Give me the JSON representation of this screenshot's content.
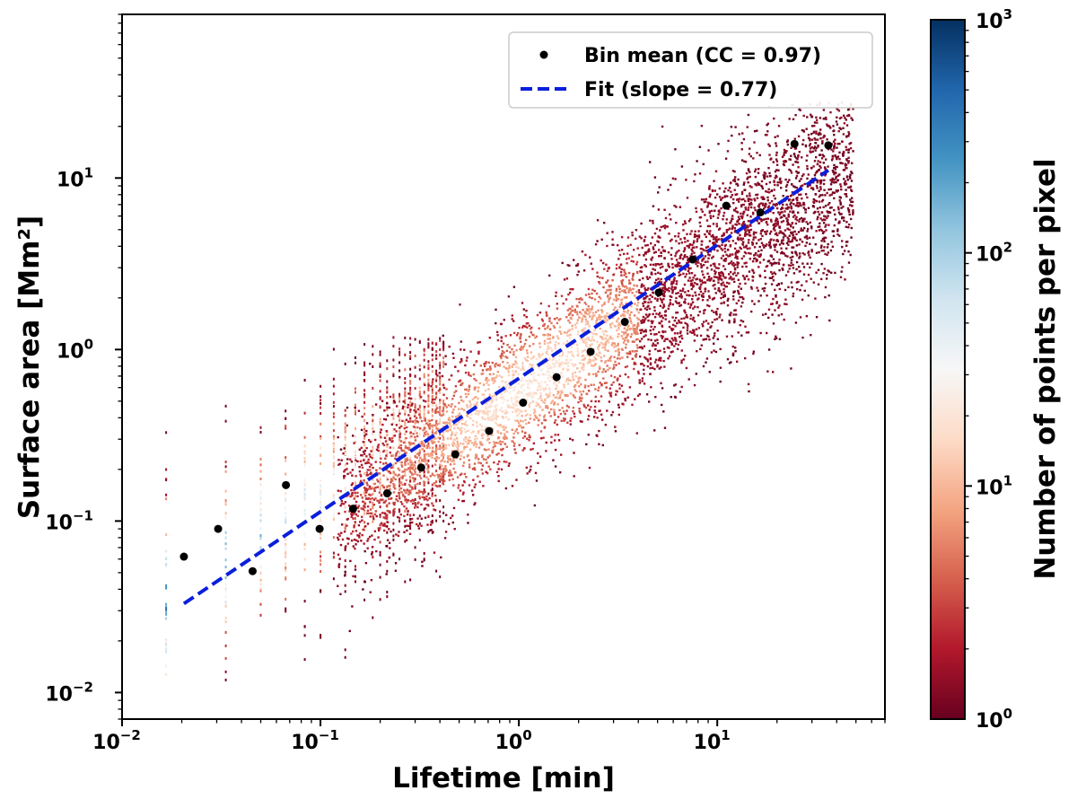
{
  "chart_data": {
    "type": "scatter",
    "xscale": "log",
    "yscale": "log",
    "xlabel": "Lifetime [min]",
    "ylabel": "Surface area [Mm²]",
    "xlim": [
      0.01,
      70
    ],
    "ylim": [
      0.007,
      90
    ],
    "x_ticks": [
      {
        "value": 0.01,
        "base": "10",
        "exp": "−2"
      },
      {
        "value": 0.1,
        "base": "10",
        "exp": "−1"
      },
      {
        "value": 1,
        "base": "10",
        "exp": "0"
      },
      {
        "value": 10,
        "base": "10",
        "exp": "1"
      }
    ],
    "y_ticks": [
      {
        "value": 0.01,
        "base": "10",
        "exp": "−2"
      },
      {
        "value": 0.1,
        "base": "10",
        "exp": "−1"
      },
      {
        "value": 1,
        "base": "10",
        "exp": "0"
      },
      {
        "value": 10,
        "base": "10",
        "exp": "1"
      }
    ],
    "series": [
      {
        "name": "Bin mean (CC = 0.97)",
        "kind": "points",
        "color": "#000000",
        "x": [
          0.0205,
          0.0305,
          0.0455,
          0.067,
          0.099,
          0.146,
          0.217,
          0.322,
          0.478,
          0.708,
          1.05,
          1.55,
          2.3,
          3.42,
          5.07,
          7.52,
          11.1,
          16.5,
          24.5,
          36.3
        ],
        "y": [
          0.062,
          0.09,
          0.051,
          0.162,
          0.09,
          0.118,
          0.145,
          0.205,
          0.245,
          0.335,
          0.49,
          0.69,
          0.97,
          1.45,
          2.15,
          3.35,
          6.9,
          6.3,
          15.8,
          15.5
        ]
      },
      {
        "name": "Fit (slope = 0.77)",
        "kind": "line",
        "style": "dashed",
        "color": "#0a1fdc",
        "x": [
          0.0205,
          36.3
        ],
        "y": [
          0.033,
          11.1
        ]
      }
    ],
    "density": {
      "name": "2D histogram of individual events",
      "colormap": "RdBu",
      "description": "pixel counts, log-scaled colors"
    },
    "legend": {
      "position": "top-right"
    },
    "colorbar": {
      "label": "Number of points per pixel",
      "scale": "log",
      "range": [
        1,
        1000
      ],
      "ticks": [
        {
          "value": 1,
          "base": "10",
          "exp": "0"
        },
        {
          "value": 10,
          "base": "10",
          "exp": "1"
        },
        {
          "value": 100,
          "base": "10",
          "exp": "2"
        },
        {
          "value": 1000,
          "base": "10",
          "exp": "3"
        }
      ],
      "colors": [
        "#67001f",
        "#b2182b",
        "#d6604d",
        "#f4a582",
        "#fddbc7",
        "#f7f7f7",
        "#d1e5f0",
        "#92c5de",
        "#4393c3",
        "#2166ac",
        "#053061"
      ]
    }
  }
}
